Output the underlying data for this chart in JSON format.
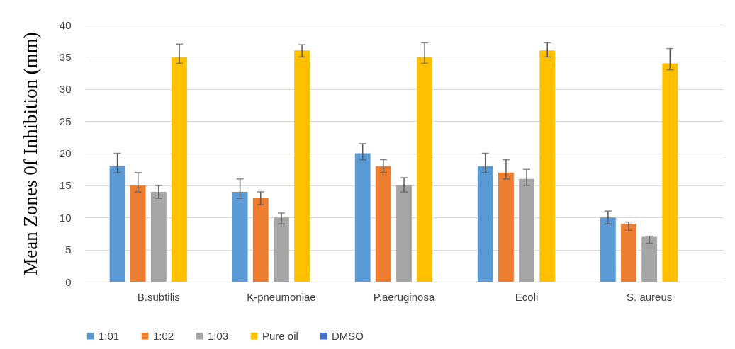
{
  "chart_data": {
    "type": "bar",
    "ylabel": "Mean Zones 0f Inhibition (mm)",
    "categories": [
      "B.subtilis",
      "K-pneumoniae",
      "P.aeruginosa",
      "Ecoli",
      "S. aureus"
    ],
    "series": [
      {
        "name": "1:01",
        "color": "#5b9bd5",
        "values": [
          18,
          14,
          20,
          18,
          10
        ],
        "errors": [
          [
            17,
            20
          ],
          [
            13,
            16
          ],
          [
            19,
            21.5
          ],
          [
            17,
            20
          ],
          [
            9,
            11
          ]
        ]
      },
      {
        "name": "1:02",
        "color": "#ed7d31",
        "values": [
          15,
          13,
          18,
          17,
          9
        ],
        "errors": [
          [
            14,
            17
          ],
          [
            12,
            14
          ],
          [
            17,
            19
          ],
          [
            16,
            19
          ],
          [
            8,
            9.3
          ]
        ]
      },
      {
        "name": "1:03",
        "color": "#a5a5a5",
        "values": [
          14,
          10,
          15,
          16,
          7
        ],
        "errors": [
          [
            13,
            15
          ],
          [
            9,
            10.7
          ],
          [
            14,
            16.2
          ],
          [
            15,
            17.5
          ],
          [
            6,
            7.1
          ]
        ]
      },
      {
        "name": "Pure oil",
        "color": "#ffc000",
        "values": [
          35,
          36,
          35,
          36,
          34
        ],
        "errors": [
          [
            34,
            37
          ],
          [
            35,
            36.9
          ],
          [
            34,
            37.2
          ],
          [
            35,
            37.2
          ],
          [
            33,
            36.3
          ]
        ]
      },
      {
        "name": "DMSO",
        "color": "#4472c4",
        "values": [
          0,
          0,
          0,
          0,
          0
        ]
      }
    ],
    "ylim": [
      0,
      40
    ],
    "yticks": [
      0,
      5,
      10,
      15,
      20,
      25,
      30,
      35,
      40
    ],
    "grid": "y",
    "legend": "bottom"
  }
}
